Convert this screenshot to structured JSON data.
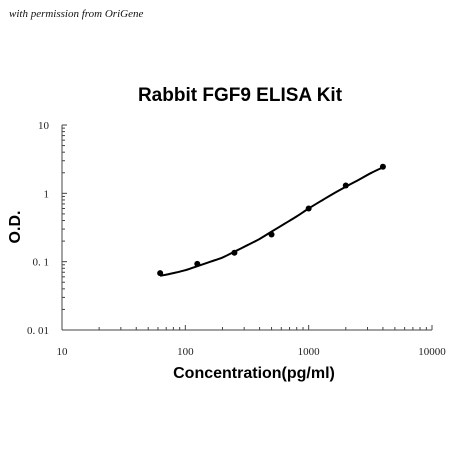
{
  "credit": "with permission from OriGene",
  "chart_data": {
    "type": "scatter",
    "title": "Rabbit FGF9 ELISA Kit",
    "xlabel": "Concentration(pg/ml)",
    "ylabel": "O.D.",
    "x_scale": "log",
    "y_scale": "log",
    "xlim": [
      10,
      10000
    ],
    "ylim": [
      0.01,
      10
    ],
    "x_ticks": [
      10,
      100,
      1000,
      10000
    ],
    "x_tick_labels": [
      "10",
      "100",
      "1000",
      "10000"
    ],
    "y_ticks": [
      0.01,
      0.1,
      1,
      10
    ],
    "y_tick_labels": [
      "0. 01",
      "0. 1",
      "1",
      "10"
    ],
    "grid": false,
    "series": [
      {
        "x": [
          62.5,
          125,
          250,
          500,
          1000,
          2000,
          4000
        ],
        "y": [
          0.068,
          0.093,
          0.135,
          0.25,
          0.6,
          1.3,
          2.45
        ]
      }
    ],
    "fit_curve": {
      "x": [
        62.5,
        80,
        100,
        125,
        160,
        200,
        250,
        320,
        400,
        500,
        640,
        800,
        1000,
        1300,
        1600,
        2000,
        2500,
        3200,
        4000
      ],
      "y": [
        0.062,
        0.068,
        0.075,
        0.086,
        0.1,
        0.115,
        0.14,
        0.175,
        0.215,
        0.275,
        0.36,
        0.46,
        0.6,
        0.8,
        1.0,
        1.25,
        1.55,
        1.98,
        2.4
      ]
    },
    "colors": {
      "points": "#000000",
      "curve": "#000000",
      "axes": "#444444"
    }
  }
}
